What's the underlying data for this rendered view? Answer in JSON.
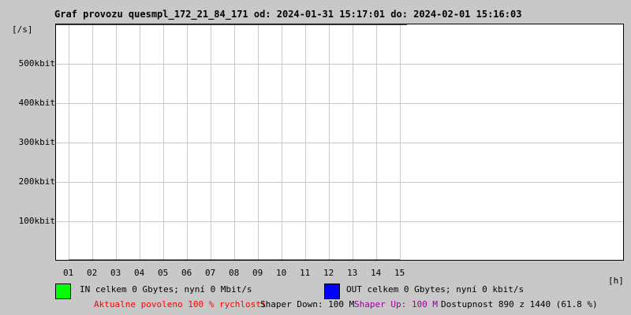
{
  "title": "Graf provozu quesmpl_172_21_84_171 od: 2024-01-31 15:17:01 do: 2024-02-01 15:16:03",
  "chart_data": {
    "type": "line",
    "ylabel": "[/s]",
    "xlabel": "[h]",
    "y_ticks": [
      "500kbit",
      "400kbit",
      "300kbit",
      "200kbit",
      "100kbit"
    ],
    "y_tick_values": [
      500,
      400,
      300,
      200,
      100
    ],
    "ylim": [
      0,
      600
    ],
    "x_ticks": [
      "01",
      "02",
      "03",
      "04",
      "05",
      "06",
      "07",
      "08",
      "09",
      "10",
      "11",
      "12",
      "13",
      "14",
      "15"
    ],
    "grid": true,
    "series": [
      {
        "name": "IN",
        "color": "#00ff00",
        "values": [
          0,
          0,
          0,
          0,
          0,
          0,
          0,
          0,
          0,
          0,
          0,
          0,
          0,
          0,
          0
        ]
      },
      {
        "name": "OUT",
        "color": "#0000ff",
        "values": [
          0,
          0,
          0,
          0,
          0,
          0,
          0,
          0,
          0,
          0,
          0,
          0,
          0,
          0,
          0
        ]
      }
    ],
    "limit_line_color": "#ff0000"
  },
  "legend": {
    "in_text": "IN celkem 0 Gbytes; nyní 0 Mbit/s",
    "out_text": "OUT celkem 0 Gbytes; nyní 0 kbit/s",
    "in_color": "#00ff00",
    "out_color": "#0000ff"
  },
  "status": {
    "allowed": "Aktualne povoleno 100 % rychlosti",
    "shaper_down": "Shaper Down: 100 M",
    "shaper_up": "Shaper Up: 100 M",
    "availability": "Dostupnost 890 z 1440 (61.8 %)"
  }
}
